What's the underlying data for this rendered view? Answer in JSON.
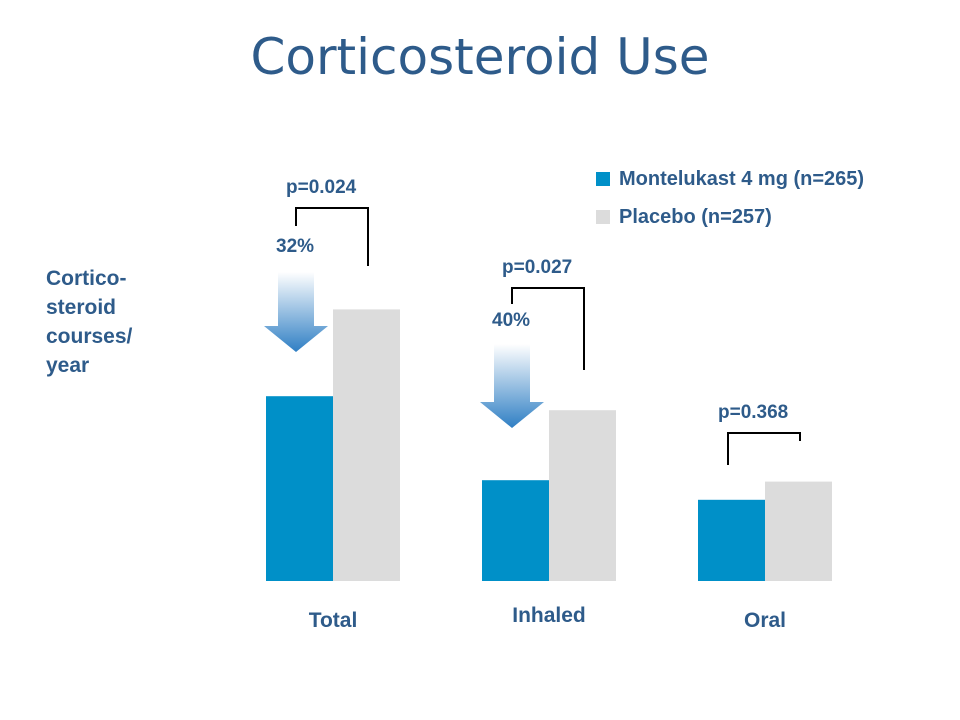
{
  "title": "Corticosteroid Use",
  "ylabel_lines": [
    "Cortico-",
    "steroid",
    "courses/",
    "year"
  ],
  "colors": {
    "series1": "#0090c8",
    "series2": "#dcdcdc",
    "text": "#2e5b8a"
  },
  "chart_data": {
    "type": "bar",
    "title": "Corticosteroid Use",
    "ylabel": "Cortico-steroid courses/ year",
    "xlabel": "",
    "categories": [
      "Total",
      "Inhaled",
      "Oral"
    ],
    "series": [
      {
        "name": "Montelukast 4 mg (n=265)",
        "values": [
          0.66,
          0.36,
          0.29
        ]
      },
      {
        "name": "Placebo (n=257)",
        "values": [
          0.97,
          0.61,
          0.355
        ]
      }
    ],
    "ylim": [
      0,
      1.0
    ],
    "grid": false,
    "legend": "top-right",
    "annotations": [
      {
        "category": "Total",
        "p_value": "p=0.024",
        "reduction": "32%"
      },
      {
        "category": "Inhaled",
        "p_value": "p=0.027",
        "reduction": "40%"
      },
      {
        "category": "Oral",
        "p_value": "p=0.368",
        "reduction": ""
      }
    ]
  }
}
